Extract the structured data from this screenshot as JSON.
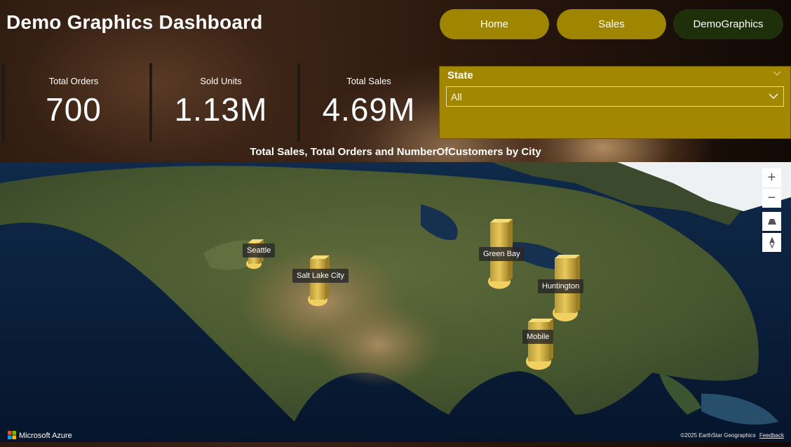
{
  "title": "Demo Graphics Dashboard",
  "nav": {
    "home": "Home",
    "sales": "Sales",
    "demo": "DemoGraphics"
  },
  "kpis": [
    {
      "label": "Total Orders",
      "value": "700"
    },
    {
      "label": "Sold Units",
      "value": "1.13M"
    },
    {
      "label": "Total Sales",
      "value": "4.69M"
    }
  ],
  "slicer": {
    "label": "State",
    "selected": "All"
  },
  "map": {
    "title": "Total Sales, Total Orders and NumberOfCustomers by City",
    "cities": [
      "Seattle",
      "Salt Lake City",
      "Green Bay",
      "Huntington",
      "Mobile"
    ],
    "controls": {
      "zoom_in": "+",
      "zoom_out": "−"
    },
    "attribution": "Microsoft Azure",
    "copyright": "©2025 EarthStar Geographics",
    "feedback": "Feedback"
  },
  "colors": {
    "nav_active": "#a08600",
    "nav_current": "#1e3009",
    "slicer_bg": "#a38700",
    "bar_fill": "#e8c85a"
  }
}
